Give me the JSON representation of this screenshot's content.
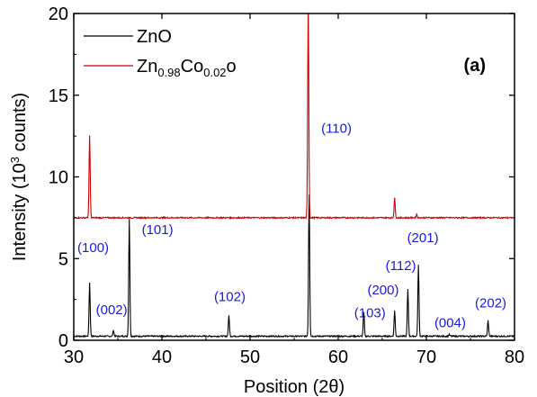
{
  "chart_data": {
    "type": "line",
    "panel_label": "(a)",
    "xlabel": "Position (2θ)",
    "ylabel": {
      "prefix": "Intensity (10",
      "superscript": "3",
      "suffix": " counts)"
    },
    "xlim": [
      30,
      80
    ],
    "ylim": [
      0,
      20
    ],
    "xticks": [
      "30",
      "40",
      "50",
      "60",
      "70",
      "80"
    ],
    "yticks": [
      "0",
      "5",
      "10",
      "15",
      "20"
    ],
    "legend": {
      "placement": "top-left",
      "entries": [
        {
          "series": 0,
          "parts": [
            {
              "text": "ZnO"
            }
          ]
        },
        {
          "series": 1,
          "parts": [
            {
              "text": "Zn"
            },
            {
              "text": "0.98",
              "sub": true
            },
            {
              "text": "Co"
            },
            {
              "text": "0.02",
              "sub": true
            },
            {
              "text": "o"
            }
          ]
        }
      ]
    },
    "series": [
      {
        "name": "ZnO",
        "color": "#000000",
        "baseline": 0.25,
        "peaks": [
          {
            "x": 31.8,
            "y": 3.5
          },
          {
            "x": 34.5,
            "y": 0.6
          },
          {
            "x": 36.3,
            "y": 7.4
          },
          {
            "x": 47.6,
            "y": 1.5
          },
          {
            "x": 56.7,
            "y": 8.9
          },
          {
            "x": 62.9,
            "y": 1.7
          },
          {
            "x": 66.4,
            "y": 1.8
          },
          {
            "x": 67.9,
            "y": 3.1
          },
          {
            "x": 69.1,
            "y": 4.6
          },
          {
            "x": 72.6,
            "y": 0.35
          },
          {
            "x": 77.0,
            "y": 1.2
          }
        ]
      },
      {
        "name": "Zn0.98Co0.02o",
        "color": "#cc0000",
        "baseline": 7.5,
        "peaks": [
          {
            "x": 31.8,
            "y": 12.5
          },
          {
            "x": 56.6,
            "y": 20.5
          },
          {
            "x": 66.4,
            "y": 8.7
          },
          {
            "x": 68.9,
            "y": 7.7
          }
        ]
      }
    ],
    "annotations": [
      {
        "text": "(100)",
        "x": 32.2,
        "y": 5.4
      },
      {
        "text": "(002)",
        "x": 34.3,
        "y": 1.6
      },
      {
        "text": "(101)",
        "x": 39.5,
        "y": 6.5
      },
      {
        "text": "(102)",
        "x": 47.7,
        "y": 2.4
      },
      {
        "text": "(110)",
        "x": 59.8,
        "y": 12.7
      },
      {
        "text": "(103)",
        "x": 63.6,
        "y": 1.4
      },
      {
        "text": "(200)",
        "x": 65.1,
        "y": 2.8
      },
      {
        "text": "(112)",
        "x": 67.1,
        "y": 4.3
      },
      {
        "text": "(201)",
        "x": 69.6,
        "y": 6.0
      },
      {
        "text": "(004)",
        "x": 72.7,
        "y": 0.8
      },
      {
        "text": "(202)",
        "x": 77.3,
        "y": 2.0
      }
    ],
    "annotation_color": "#1a1adb",
    "grid": false
  }
}
